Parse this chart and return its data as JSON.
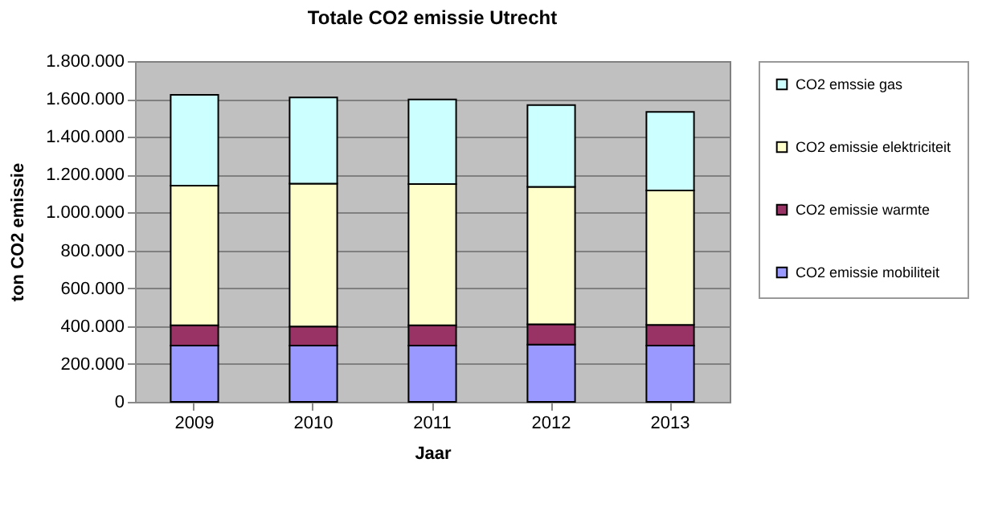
{
  "chart_data": {
    "type": "bar",
    "title": "Totale CO2 emissie Utrecht",
    "xlabel": "Jaar",
    "ylabel": "ton CO2 emissie",
    "categories": [
      "2009",
      "2010",
      "2011",
      "2012",
      "2013"
    ],
    "stacked": true,
    "series": [
      {
        "name": "CO2 emissie mobiliteit",
        "color": "#9999ff",
        "values": [
          297000,
          297000,
          297000,
          302000,
          297000
        ]
      },
      {
        "name": "CO2 emissie warmte",
        "color": "#993366",
        "values": [
          107000,
          101000,
          107000,
          108000,
          110000
        ]
      },
      {
        "name": "CO2 emissie elektriciteit",
        "color": "#ffffcc",
        "values": [
          738000,
          755000,
          746000,
          726000,
          709000
        ]
      },
      {
        "name": "CO2 emssie gas",
        "color": "#ccffff",
        "values": [
          480000,
          455000,
          447000,
          432000,
          416000
        ]
      }
    ],
    "ylim": [
      0,
      1800000
    ],
    "yticks": [
      0,
      {
        "value": 200000,
        "label": "200.000"
      },
      {
        "value": 400000,
        "label": "400.000"
      },
      {
        "value": 600000,
        "label": "600.000"
      },
      {
        "value": 800000,
        "label": "800.000"
      },
      {
        "value": 1000000,
        "label": "1.000.000"
      },
      {
        "value": 1200000,
        "label": "1.200.000"
      },
      {
        "value": 1400000,
        "label": "1.400.000"
      },
      {
        "value": 1600000,
        "label": "1.600.000"
      },
      {
        "value": 1800000,
        "label": "1.800.000"
      }
    ],
    "grid": "y",
    "legend": "right"
  }
}
